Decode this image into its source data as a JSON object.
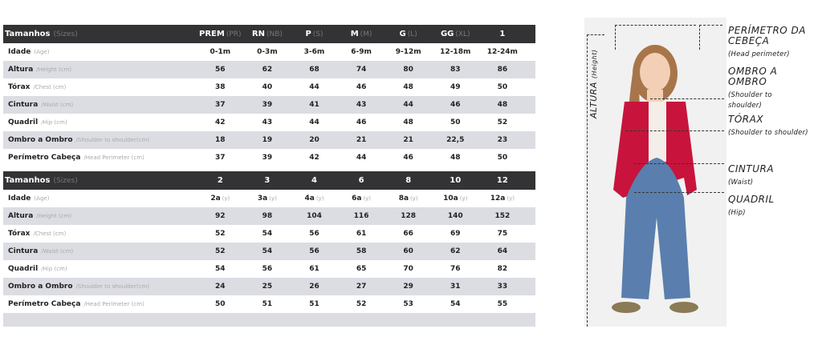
{
  "table1": {
    "header": {
      "label": "Tamanhos",
      "sub": "(Sizes)",
      "cols": [
        {
          "v": "PREM",
          "s": "(PR)"
        },
        {
          "v": "RN",
          "s": "(NB)"
        },
        {
          "v": "P",
          "s": "(S)"
        },
        {
          "v": "M",
          "s": "(M)"
        },
        {
          "v": "G",
          "s": "(L)"
        },
        {
          "v": "GG",
          "s": "(XL)"
        },
        {
          "v": "1",
          "s": ""
        }
      ]
    },
    "rows": [
      {
        "label": "Idade",
        "sub": "(Age)",
        "values": [
          "0-1m",
          "0-3m",
          "3-6m",
          "6-9m",
          "9-12m",
          "12-18m",
          "12-24m"
        ]
      },
      {
        "label": "Altura",
        "sub": "/Height (cm)",
        "values": [
          "56",
          "62",
          "68",
          "74",
          "80",
          "83",
          "86"
        ]
      },
      {
        "label": "Tórax",
        "sub": "/Chest (cm)",
        "values": [
          "38",
          "40",
          "44",
          "46",
          "48",
          "49",
          "50"
        ]
      },
      {
        "label": "Cintura",
        "sub": "/Waist (cm)",
        "values": [
          "37",
          "39",
          "41",
          "43",
          "44",
          "46",
          "48"
        ]
      },
      {
        "label": "Quadril",
        "sub": "/Hip (cm)",
        "values": [
          "42",
          "43",
          "44",
          "46",
          "48",
          "50",
          "52"
        ]
      },
      {
        "label": "Ombro a Ombro",
        "sub": "/Shoulder to shoulder(cm)",
        "values": [
          "18",
          "19",
          "20",
          "21",
          "21",
          "22,5",
          "23"
        ]
      },
      {
        "label": "Perímetro Cabeça",
        "sub": "/Head Perimeter (cm)",
        "values": [
          "37",
          "39",
          "42",
          "44",
          "46",
          "48",
          "50"
        ]
      }
    ]
  },
  "table2": {
    "header": {
      "label": "Tamanhos",
      "sub": "(Sizes)",
      "cols": [
        {
          "v": "2",
          "s": ""
        },
        {
          "v": "3",
          "s": ""
        },
        {
          "v": "4",
          "s": ""
        },
        {
          "v": "6",
          "s": ""
        },
        {
          "v": "8",
          "s": ""
        },
        {
          "v": "10",
          "s": ""
        },
        {
          "v": "12",
          "s": ""
        }
      ]
    },
    "rows": [
      {
        "label": "Idade",
        "sub": "(Age)",
        "values": [
          "2a",
          "3a",
          "4a",
          "6a",
          "8a",
          "10a",
          "12a"
        ],
        "unit": "(y)"
      },
      {
        "label": "Altura",
        "sub": "/Height (cm)",
        "values": [
          "92",
          "98",
          "104",
          "116",
          "128",
          "140",
          "152"
        ]
      },
      {
        "label": "Tórax",
        "sub": "/Chest (cm)",
        "values": [
          "52",
          "54",
          "56",
          "61",
          "66",
          "69",
          "75"
        ]
      },
      {
        "label": "Cintura",
        "sub": "/Waist (cm)",
        "values": [
          "52",
          "54",
          "56",
          "58",
          "60",
          "62",
          "64"
        ]
      },
      {
        "label": "Quadril",
        "sub": "/Hip (cm)",
        "values": [
          "54",
          "56",
          "61",
          "65",
          "70",
          "76",
          "82"
        ]
      },
      {
        "label": "Ombro a Ombro",
        "sub": "/Shoulder to shoulder(cm)",
        "values": [
          "24",
          "25",
          "26",
          "27",
          "29",
          "31",
          "33"
        ]
      },
      {
        "label": "Perímetro Cabeça",
        "sub": "/Head Perimeter (cm)",
        "values": [
          "50",
          "51",
          "51",
          "52",
          "53",
          "54",
          "55"
        ]
      }
    ]
  },
  "figure": {
    "height_label": "ALTURA",
    "height_sub": "(Height)",
    "annotations": [
      {
        "title": "PERÍMETRO DA CEBEÇA",
        "sub": "(Head perimeter)"
      },
      {
        "title": "OMBRO A OMBRO",
        "sub": "(Shoulder to shoulder)"
      },
      {
        "title": "TÓRAX",
        "sub": "(Shoulder to shoulder)"
      },
      {
        "title": "CINTURA",
        "sub": "(Waist)"
      },
      {
        "title": "QUADRIL",
        "sub": "(Hip)"
      }
    ],
    "colors": {
      "cardigan": "#c8143c",
      "jeans": "#5a7fae",
      "hair": "#a8754a"
    }
  }
}
